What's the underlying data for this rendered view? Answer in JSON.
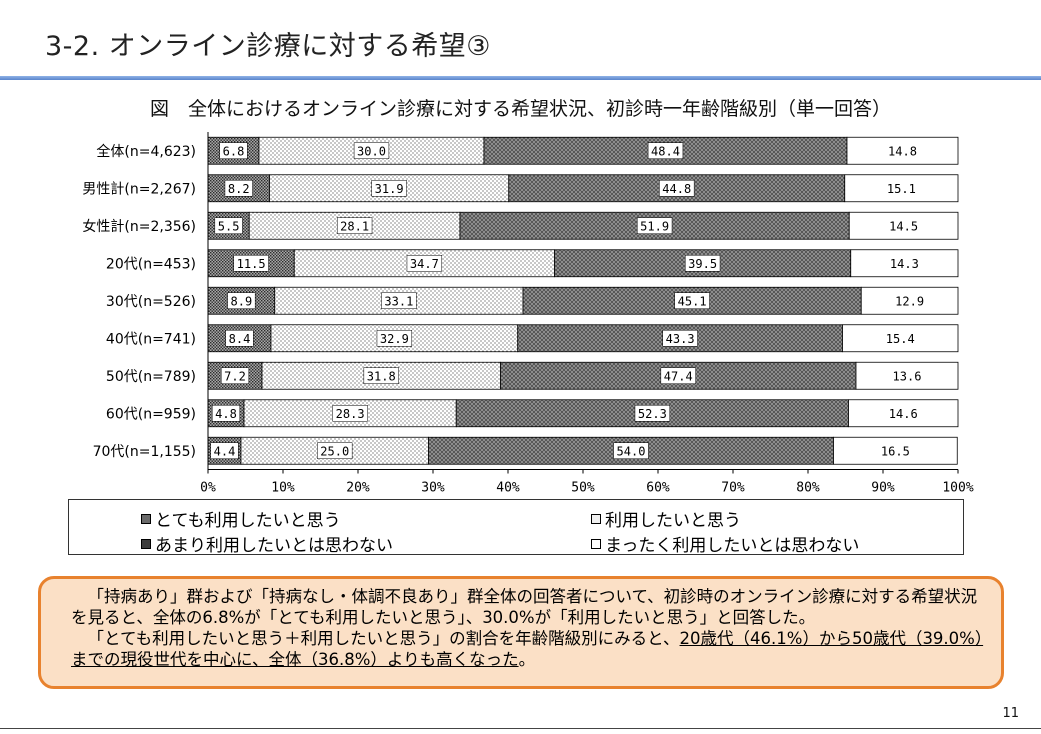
{
  "page": {
    "title": "3-2. オンライン診療に対する希望③",
    "page_number": "11"
  },
  "chart_data": {
    "type": "bar",
    "orientation": "horizontal-stacked-100",
    "title": "図　全体におけるオンライン診療に対する希望状況、初診時一年齢階級別（単一回答）",
    "categories": [
      "全体(n=4,623)",
      "男性計(n=2,267)",
      "女性計(n=2,356)",
      "20代(n=453)",
      "30代(n=526)",
      "40代(n=741)",
      "50代(n=789)",
      "60代(n=959)",
      "70代(n=1,155)"
    ],
    "series": [
      {
        "name": "とても利用したいと思う",
        "pattern": "dark-dots",
        "values": [
          6.8,
          8.2,
          5.5,
          11.5,
          8.9,
          8.4,
          7.2,
          4.8,
          4.4
        ]
      },
      {
        "name": "利用したいと思う",
        "pattern": "light-dots",
        "values": [
          30.0,
          31.9,
          28.1,
          34.7,
          33.1,
          32.9,
          31.8,
          28.3,
          25.0
        ]
      },
      {
        "name": "あまり利用したいとは思わない",
        "pattern": "dark-crosshatch",
        "values": [
          48.4,
          44.8,
          51.9,
          39.5,
          45.1,
          43.3,
          47.4,
          52.3,
          54.0
        ]
      },
      {
        "name": "まったく利用したいとは思わない",
        "pattern": "white",
        "values": [
          14.8,
          15.1,
          14.5,
          14.3,
          12.9,
          15.4,
          13.6,
          14.6,
          16.5
        ]
      }
    ],
    "xlim": [
      0,
      100
    ],
    "xticks": [
      "0%",
      "10%",
      "20%",
      "30%",
      "40%",
      "50%",
      "60%",
      "70%",
      "80%",
      "90%",
      "100%"
    ],
    "legend_position": "bottom",
    "grid": false
  },
  "callout": {
    "para1": "「持病あり」群および「持病なし・体調不良あり」群全体の回答者について、初診時のオンライン診療に対する希望状況を見ると、全体の6.8%が「とても利用したいと思う」、30.0%が「利用したいと思う」と回答した。",
    "para2_start": "「とても利用したいと思う＋利用したいと思う」の割合を年齢階級別にみると、",
    "para2_underline": "20歳代（46.1%）から50歳代（39.0%）までの現役世代を中心に、全体（36.8%）よりも高くなった",
    "para2_end": "。"
  }
}
